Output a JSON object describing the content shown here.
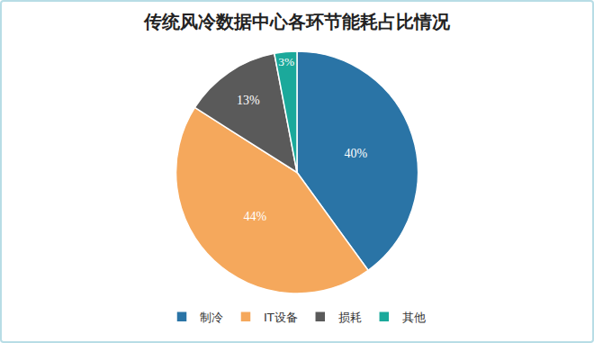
{
  "chart_data": {
    "type": "pie",
    "title": "传统风冷数据中心各环节能耗占比情况",
    "categories": [
      "制冷",
      "IT设备",
      "损耗",
      "其他"
    ],
    "values": [
      40,
      44,
      13,
      3
    ],
    "value_labels": [
      "40%",
      "44%",
      "13%",
      "3%"
    ],
    "colors": [
      "#2a74a6",
      "#f5a85c",
      "#5a5a5a",
      "#1ba99b"
    ],
    "data_labels": true,
    "legend": "bottom"
  }
}
